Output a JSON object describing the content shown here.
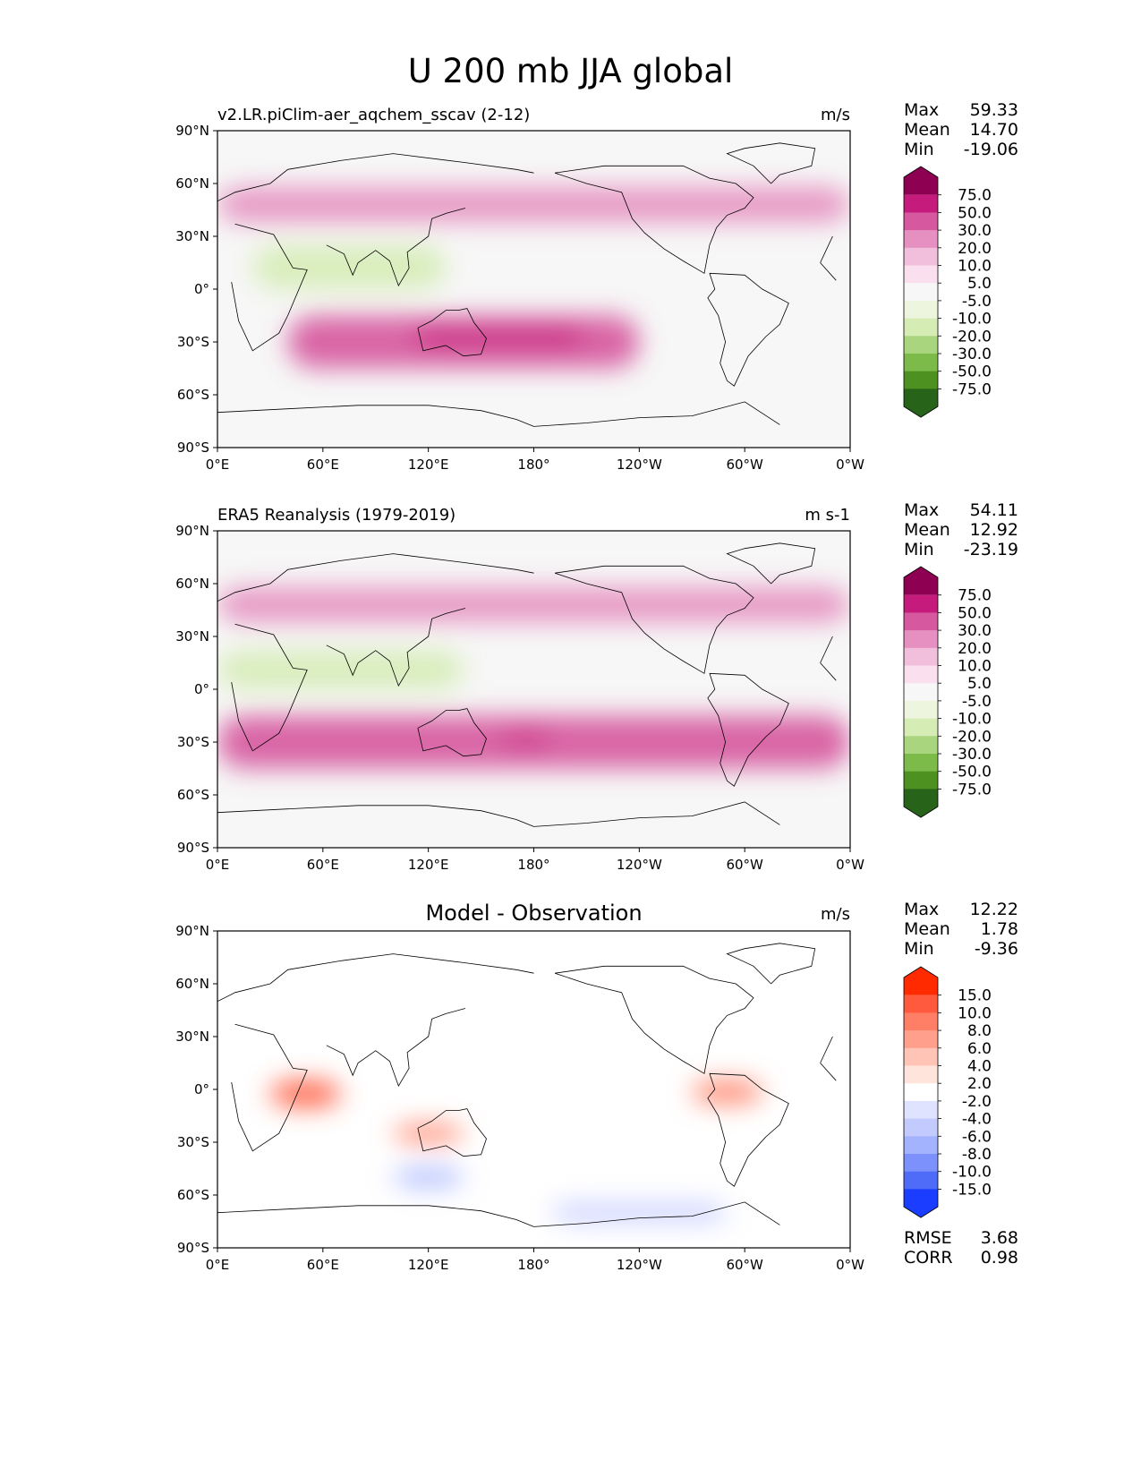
{
  "figure_title": "U 200 mb JJA global",
  "panels": [
    {
      "id": "model",
      "left_title": "v2.LR.piClim-aer_aqchem_sscav (2-12)",
      "center_title": "",
      "units": "m/s",
      "stats": [
        {
          "label": "Max",
          "value": "59.33"
        },
        {
          "label": "Mean",
          "value": "14.70"
        },
        {
          "label": "Min",
          "value": "-19.06"
        }
      ],
      "extra_stats": []
    },
    {
      "id": "reference",
      "left_title": "ERA5 Reanalysis (1979-2019)",
      "center_title": "",
      "units": "m s-1",
      "stats": [
        {
          "label": "Max",
          "value": "54.11"
        },
        {
          "label": "Mean",
          "value": "12.92"
        },
        {
          "label": "Min",
          "value": "-23.19"
        }
      ],
      "extra_stats": []
    },
    {
      "id": "difference",
      "left_title": "",
      "center_title": "Model - Observation",
      "units": "m/s",
      "stats": [
        {
          "label": "Max",
          "value": "12.22"
        },
        {
          "label": "Mean",
          "value": "1.78"
        },
        {
          "label": "Min",
          "value": "-9.36"
        }
      ],
      "extra_stats": [
        {
          "label": "RMSE",
          "value": "3.68"
        },
        {
          "label": "CORR",
          "value": "0.98"
        }
      ]
    }
  ],
  "colorbars": {
    "field": {
      "labels": [
        "75.0",
        "50.0",
        "30.0",
        "20.0",
        "10.0",
        "5.0",
        "-5.0",
        "-10.0",
        "-20.0",
        "-30.0",
        "-50.0",
        "-75.0"
      ],
      "colors": [
        "#8e0152",
        "#c51b7d",
        "#d6589e",
        "#e590c0",
        "#f1bfdc",
        "#fadfee",
        "#f7f7f7",
        "#eef5df",
        "#d5edb5",
        "#aad57f",
        "#7cba4a",
        "#4d9221",
        "#276419"
      ]
    },
    "diff": {
      "labels": [
        "15.0",
        "10.0",
        "8.0",
        "6.0",
        "4.0",
        "2.0",
        "-2.0",
        "-4.0",
        "-6.0",
        "-8.0",
        "-10.0",
        "-15.0"
      ],
      "colors": [
        "#ff2a00",
        "#ff5a3d",
        "#ff7f66",
        "#ff9f8c",
        "#ffc4b6",
        "#ffe4dc",
        "#ffffff",
        "#dfe3ff",
        "#c2cafe",
        "#a4b3fd",
        "#7c91fb",
        "#4f6cf8",
        "#1a3dff"
      ]
    }
  },
  "chart_data": [
    {
      "type": "heatmap",
      "title": "v2.LR.piClim-aer_aqchem_sscav (2-12)",
      "units": "m/s",
      "x_ticks": [
        "0°E",
        "60°E",
        "120°E",
        "180°",
        "120°W",
        "60°W",
        "0°W"
      ],
      "y_ticks": [
        "90°N",
        "60°N",
        "30°N",
        "0°",
        "30°S",
        "60°S",
        "90°S"
      ],
      "xlim": [
        0,
        360
      ],
      "ylim": [
        -90,
        90
      ],
      "levels": [
        -75,
        -50,
        -30,
        -20,
        -10,
        -5,
        5,
        10,
        20,
        30,
        50,
        75
      ],
      "features": [
        {
          "lon": [
            0,
            360
          ],
          "lat": [
            38,
            58
          ],
          "value": 25
        },
        {
          "lon": [
            40,
            240
          ],
          "lat": [
            -45,
            -15
          ],
          "value": 40
        },
        {
          "lon": [
            110,
            210
          ],
          "lat": [
            -32,
            -22
          ],
          "value": 55
        },
        {
          "lon": [
            20,
            130
          ],
          "lat": [
            0,
            25
          ],
          "value": -15
        }
      ]
    },
    {
      "type": "heatmap",
      "title": "ERA5 Reanalysis (1979-2019)",
      "units": "m s-1",
      "x_ticks": [
        "0°E",
        "60°E",
        "120°E",
        "180°",
        "120°W",
        "60°W",
        "0°W"
      ],
      "y_ticks": [
        "90°N",
        "60°N",
        "30°N",
        "0°",
        "30°S",
        "60°S",
        "90°S"
      ],
      "xlim": [
        0,
        360
      ],
      "ylim": [
        -90,
        90
      ],
      "levels": [
        -75,
        -50,
        -30,
        -20,
        -10,
        -5,
        5,
        10,
        20,
        30,
        50,
        75
      ],
      "features": [
        {
          "lon": [
            0,
            360
          ],
          "lat": [
            38,
            58
          ],
          "value": 22
        },
        {
          "lon": [
            0,
            360
          ],
          "lat": [
            -45,
            -15
          ],
          "value": 40
        },
        {
          "lon": [
            160,
            190
          ],
          "lat": [
            -32,
            -25
          ],
          "value": 52
        },
        {
          "lon": [
            0,
            140
          ],
          "lat": [
            0,
            22
          ],
          "value": -18
        }
      ]
    },
    {
      "type": "heatmap",
      "title": "Model - Observation",
      "units": "m/s",
      "x_ticks": [
        "0°E",
        "60°E",
        "120°E",
        "180°",
        "120°W",
        "60°W",
        "0°W"
      ],
      "y_ticks": [
        "90°N",
        "60°N",
        "30°N",
        "0°",
        "30°S",
        "60°S",
        "90°S"
      ],
      "xlim": [
        0,
        360
      ],
      "ylim": [
        -90,
        90
      ],
      "levels": [
        -15,
        -10,
        -8,
        -6,
        -4,
        -2,
        2,
        4,
        6,
        8,
        10,
        15
      ],
      "features": [
        {
          "lon": [
            30,
            70
          ],
          "lat": [
            -10,
            5
          ],
          "value": 10
        },
        {
          "lon": [
            270,
            310
          ],
          "lat": [
            -8,
            5
          ],
          "value": 8
        },
        {
          "lon": [
            100,
            140
          ],
          "lat": [
            -30,
            -20
          ],
          "value": 8
        },
        {
          "lon": [
            100,
            140
          ],
          "lat": [
            -55,
            -45
          ],
          "value": -8
        },
        {
          "lon": [
            190,
            290
          ],
          "lat": [
            -75,
            -65
          ],
          "value": -6
        }
      ]
    }
  ]
}
